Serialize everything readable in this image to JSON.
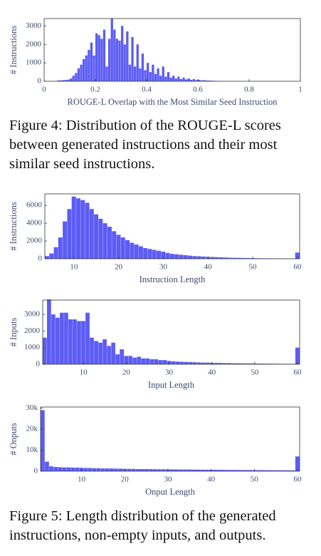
{
  "chart_data": [
    {
      "type": "histogram",
      "xlabel": "ROUGE-L Overlap with the Most Similar Seed Instruction",
      "ylabel": "# Instructions",
      "color": "#5c5cf5",
      "bins": [
        0.05,
        0.06,
        0.07,
        0.08,
        0.09,
        0.1,
        0.11,
        0.12,
        0.13,
        0.14,
        0.15,
        0.16,
        0.17,
        0.18,
        0.19,
        0.2,
        0.21,
        0.22,
        0.23,
        0.24,
        0.25,
        0.26,
        0.27,
        0.28,
        0.29,
        0.3,
        0.31,
        0.32,
        0.33,
        0.34,
        0.35,
        0.36,
        0.37,
        0.38,
        0.39,
        0.4,
        0.41,
        0.42,
        0.43,
        0.44,
        0.45,
        0.46,
        0.47,
        0.48,
        0.49,
        0.5,
        0.51,
        0.52,
        0.53,
        0.54,
        0.55,
        0.56,
        0.57,
        0.58,
        0.59,
        0.6,
        0.61,
        0.62,
        0.63,
        0.64,
        0.65,
        0.66,
        0.67,
        0.68,
        0.69,
        0.7
      ],
      "values": [
        40,
        50,
        60,
        70,
        90,
        150,
        300,
        450,
        700,
        900,
        1200,
        1400,
        1700,
        2100,
        1400,
        2600,
        2500,
        2300,
        2800,
        800,
        2300,
        3400,
        2800,
        2300,
        2200,
        3000,
        2000,
        2700,
        900,
        2400,
        800,
        2000,
        700,
        1500,
        600,
        1000,
        500,
        900,
        400,
        700,
        300,
        800,
        250,
        500,
        200,
        300,
        150,
        250,
        120,
        200,
        100,
        150,
        80,
        120,
        60,
        80,
        50,
        60,
        40,
        40,
        30,
        25,
        20,
        15,
        10
      ],
      "xlim": [
        0,
        1
      ],
      "ylim": [
        0,
        3400
      ],
      "xticks": [
        0,
        0.2,
        0.4,
        0.6,
        0.8,
        1
      ],
      "yticks": [
        0,
        1000,
        2000,
        3000
      ]
    },
    {
      "type": "histogram",
      "xlabel": "Instruction Length",
      "ylabel": "# Instructions",
      "color": "#5c5cf5",
      "bins": [
        3.5,
        4.5,
        5.5,
        6.5,
        7.5,
        8.5,
        9.5,
        10.5,
        11.5,
        12.5,
        13.5,
        14.5,
        15.5,
        16.5,
        17.5,
        18.5,
        19.5,
        20.5,
        21.5,
        22.5,
        23.5,
        24.5,
        25.5,
        26.5,
        27.5,
        28.5,
        29.5,
        30.5,
        31.5,
        32.5,
        33.5,
        34.5,
        35.5,
        36.5,
        37.5,
        38.5,
        39.5,
        40.5,
        41.5,
        42.5,
        43.5,
        44.5,
        45.5,
        46.5,
        47.5,
        48.5,
        49.5,
        50.5,
        51.5,
        52.5,
        53.5,
        54.5,
        55.5,
        56.5,
        57.5,
        58.5,
        59.5,
        60.5
      ],
      "values": [
        300,
        600,
        1300,
        2400,
        4200,
        5600,
        7000,
        6800,
        6600,
        6300,
        5600,
        5000,
        4500,
        4000,
        3600,
        3100,
        2700,
        2400,
        2100,
        1800,
        1600,
        1400,
        1200,
        1100,
        1000,
        900,
        800,
        650,
        550,
        500,
        450,
        400,
        350,
        300,
        280,
        250,
        220,
        200,
        180,
        160,
        140,
        120,
        110,
        100,
        90,
        80,
        70,
        60,
        55,
        50,
        45,
        40,
        35,
        30,
        28,
        25,
        700
      ],
      "xlim": [
        3.5,
        60.5
      ],
      "ylim": [
        0,
        7300
      ],
      "xticks": [
        10,
        20,
        30,
        40,
        50,
        60
      ],
      "yticks": [
        0,
        2000,
        4000,
        6000
      ]
    },
    {
      "type": "histogram",
      "xlabel": "Input Length",
      "ylabel": "# Inputs",
      "color": "#5c5cf5",
      "bins": [
        0.5,
        1.5,
        2.5,
        3.5,
        4.5,
        5.5,
        6.5,
        7.5,
        8.5,
        9.5,
        10.5,
        11.5,
        12.5,
        13.5,
        14.5,
        15.5,
        16.5,
        17.5,
        18.5,
        19.5,
        20.5,
        21.5,
        22.5,
        23.5,
        24.5,
        25.5,
        26.5,
        27.5,
        28.5,
        29.5,
        30.5,
        31.5,
        32.5,
        33.5,
        34.5,
        35.5,
        36.5,
        37.5,
        38.5,
        39.5,
        40.5,
        41.5,
        42.5,
        43.5,
        44.5,
        45.5,
        46.5,
        47.5,
        48.5,
        49.5,
        50.5,
        51.5,
        52.5,
        53.5,
        54.5,
        55.5,
        56.5,
        57.5,
        58.5,
        59.5,
        60.5
      ],
      "values": [
        1600,
        3900,
        3000,
        2800,
        3100,
        3100,
        2700,
        2700,
        2600,
        2600,
        3100,
        1600,
        1400,
        1300,
        1500,
        1100,
        1300,
        600,
        900,
        500,
        500,
        400,
        450,
        350,
        350,
        300,
        300,
        250,
        250,
        200,
        180,
        160,
        150,
        140,
        130,
        120,
        110,
        100,
        100,
        90,
        80,
        80,
        70,
        70,
        60,
        60,
        55,
        50,
        50,
        45,
        40,
        40,
        35,
        35,
        30,
        30,
        28,
        25,
        25,
        1000
      ],
      "xlim": [
        0.5,
        60.5
      ],
      "ylim": [
        0,
        3860
      ],
      "xticks": [
        10,
        20,
        30,
        40,
        50,
        60
      ],
      "yticks": [
        0,
        1000,
        2000,
        3000
      ]
    },
    {
      "type": "histogram",
      "xlabel": "Onput Length",
      "ylabel": "# Onputs",
      "color": "#5c5cf5",
      "bins": [
        0.5,
        1.5,
        2.5,
        3.5,
        4.5,
        5.5,
        6.5,
        7.5,
        8.5,
        9.5,
        10.5,
        11.5,
        12.5,
        13.5,
        14.5,
        15.5,
        16.5,
        17.5,
        18.5,
        19.5,
        20.5,
        21.5,
        22.5,
        23.5,
        24.5,
        25.5,
        26.5,
        27.5,
        28.5,
        29.5,
        30.5,
        31.5,
        32.5,
        33.5,
        34.5,
        35.5,
        36.5,
        37.5,
        38.5,
        39.5,
        40.5,
        41.5,
        42.5,
        43.5,
        44.5,
        45.5,
        46.5,
        47.5,
        48.5,
        49.5,
        50.5,
        51.5,
        52.5,
        53.5,
        54.5,
        55.5,
        56.5,
        57.5,
        58.5,
        59.5,
        60.5
      ],
      "values": [
        29000,
        4500,
        2300,
        2000,
        1900,
        1800,
        1800,
        1700,
        1700,
        1600,
        1500,
        1500,
        1400,
        1400,
        1300,
        1300,
        1300,
        1200,
        1200,
        1100,
        1100,
        1100,
        1000,
        1000,
        1000,
        950,
        950,
        900,
        900,
        900,
        850,
        850,
        800,
        800,
        800,
        750,
        750,
        700,
        700,
        700,
        650,
        650,
        650,
        600,
        600,
        600,
        550,
        550,
        550,
        500,
        500,
        500,
        480,
        460,
        450,
        440,
        430,
        420,
        410,
        7000
      ],
      "xlim": [
        0.5,
        60.5
      ],
      "ylim": [
        0,
        30500
      ],
      "xticks": [
        10,
        20,
        30,
        40,
        50,
        60
      ],
      "yticks": [
        0,
        {
          "value": 10000,
          "label": "10k"
        },
        {
          "value": 20000,
          "label": "20k"
        },
        {
          "value": 30000,
          "label": "30k"
        }
      ]
    }
  ],
  "captions": [
    "Figure 4: Distribution of the ROUGE-L scores between generated instructions and their most similar seed instructions.",
    "Figure 5: Length distribution of the generated instructions, non-empty inputs, and outputs."
  ]
}
